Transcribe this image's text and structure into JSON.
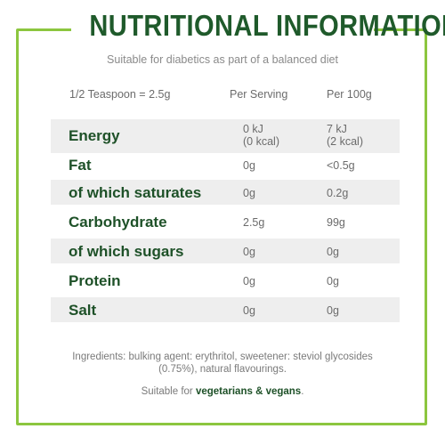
{
  "title": "NUTRITIONAL INFORMATION",
  "subtitle": "Suitable for diabetics as part of a balanced diet",
  "table": {
    "headers": [
      "1/2 Teaspoon = 2.5g",
      "Per Serving",
      "Per 100g"
    ],
    "rows": [
      {
        "nutrient": "Energy",
        "per_serving": [
          "0 kJ",
          "(0 kcal)"
        ],
        "per_100g": [
          "7 kJ",
          "(2 kcal)"
        ]
      },
      {
        "nutrient": "Fat",
        "per_serving": "0g",
        "per_100g": "<0.5g"
      },
      {
        "nutrient": "of which saturates",
        "per_serving": "0g",
        "per_100g": "0.2g"
      },
      {
        "nutrient": "Carbohydrate",
        "per_serving": "2.5g",
        "per_100g": "99g"
      },
      {
        "nutrient": "of which sugars",
        "per_serving": "0g",
        "per_100g": "0g"
      },
      {
        "nutrient": "Protein",
        "per_serving": "0g",
        "per_100g": "0g"
      },
      {
        "nutrient": "Salt",
        "per_serving": "0g",
        "per_100g": "0g"
      }
    ]
  },
  "ingredients": [
    "Ingredients: bulking agent: erythritol, sweetener: steviol glycosides",
    "(0.75%), natural flavourings."
  ],
  "suitability": {
    "prefix": "Suitable for ",
    "bold": "vegetarians & vegans",
    "suffix": "."
  },
  "colors": {
    "border": "#8cc63f",
    "title": "#1f5a2b",
    "row_band": "#eeeeee"
  }
}
